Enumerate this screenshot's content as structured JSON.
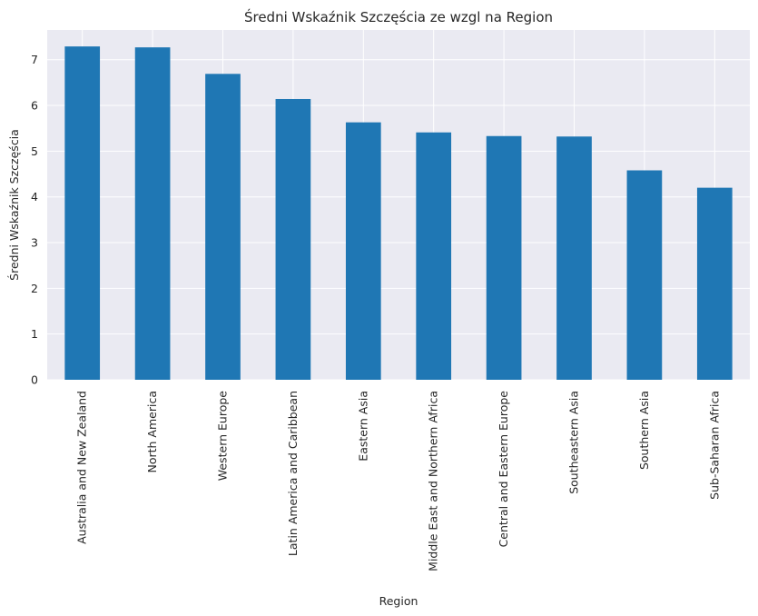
{
  "chart_data": {
    "type": "bar",
    "title": "Średni Wskaźnik Szczęścia ze wzgl na Region",
    "xlabel": "Region",
    "ylabel": "Średni Wskaźnik Szczęścia",
    "categories": [
      "Australia and New Zealand",
      "North America",
      "Western Europe",
      "Latin America and Caribbean",
      "Eastern Asia",
      "Middle East and Northern Africa",
      "Central and Eastern Europe",
      "Southeastern Asia",
      "Southern Asia",
      "Sub-Saharan Africa"
    ],
    "values": [
      7.29,
      7.27,
      6.69,
      6.14,
      5.63,
      5.41,
      5.33,
      5.32,
      4.58,
      4.2
    ],
    "ylim": [
      0,
      7.65
    ],
    "yticks": [
      "0",
      "1",
      "2",
      "3",
      "4",
      "5",
      "6",
      "7"
    ],
    "grid": true,
    "colors": {
      "bar": "#1f77b4",
      "plot_bg": "#eaeaf2",
      "grid": "#ffffff"
    }
  }
}
